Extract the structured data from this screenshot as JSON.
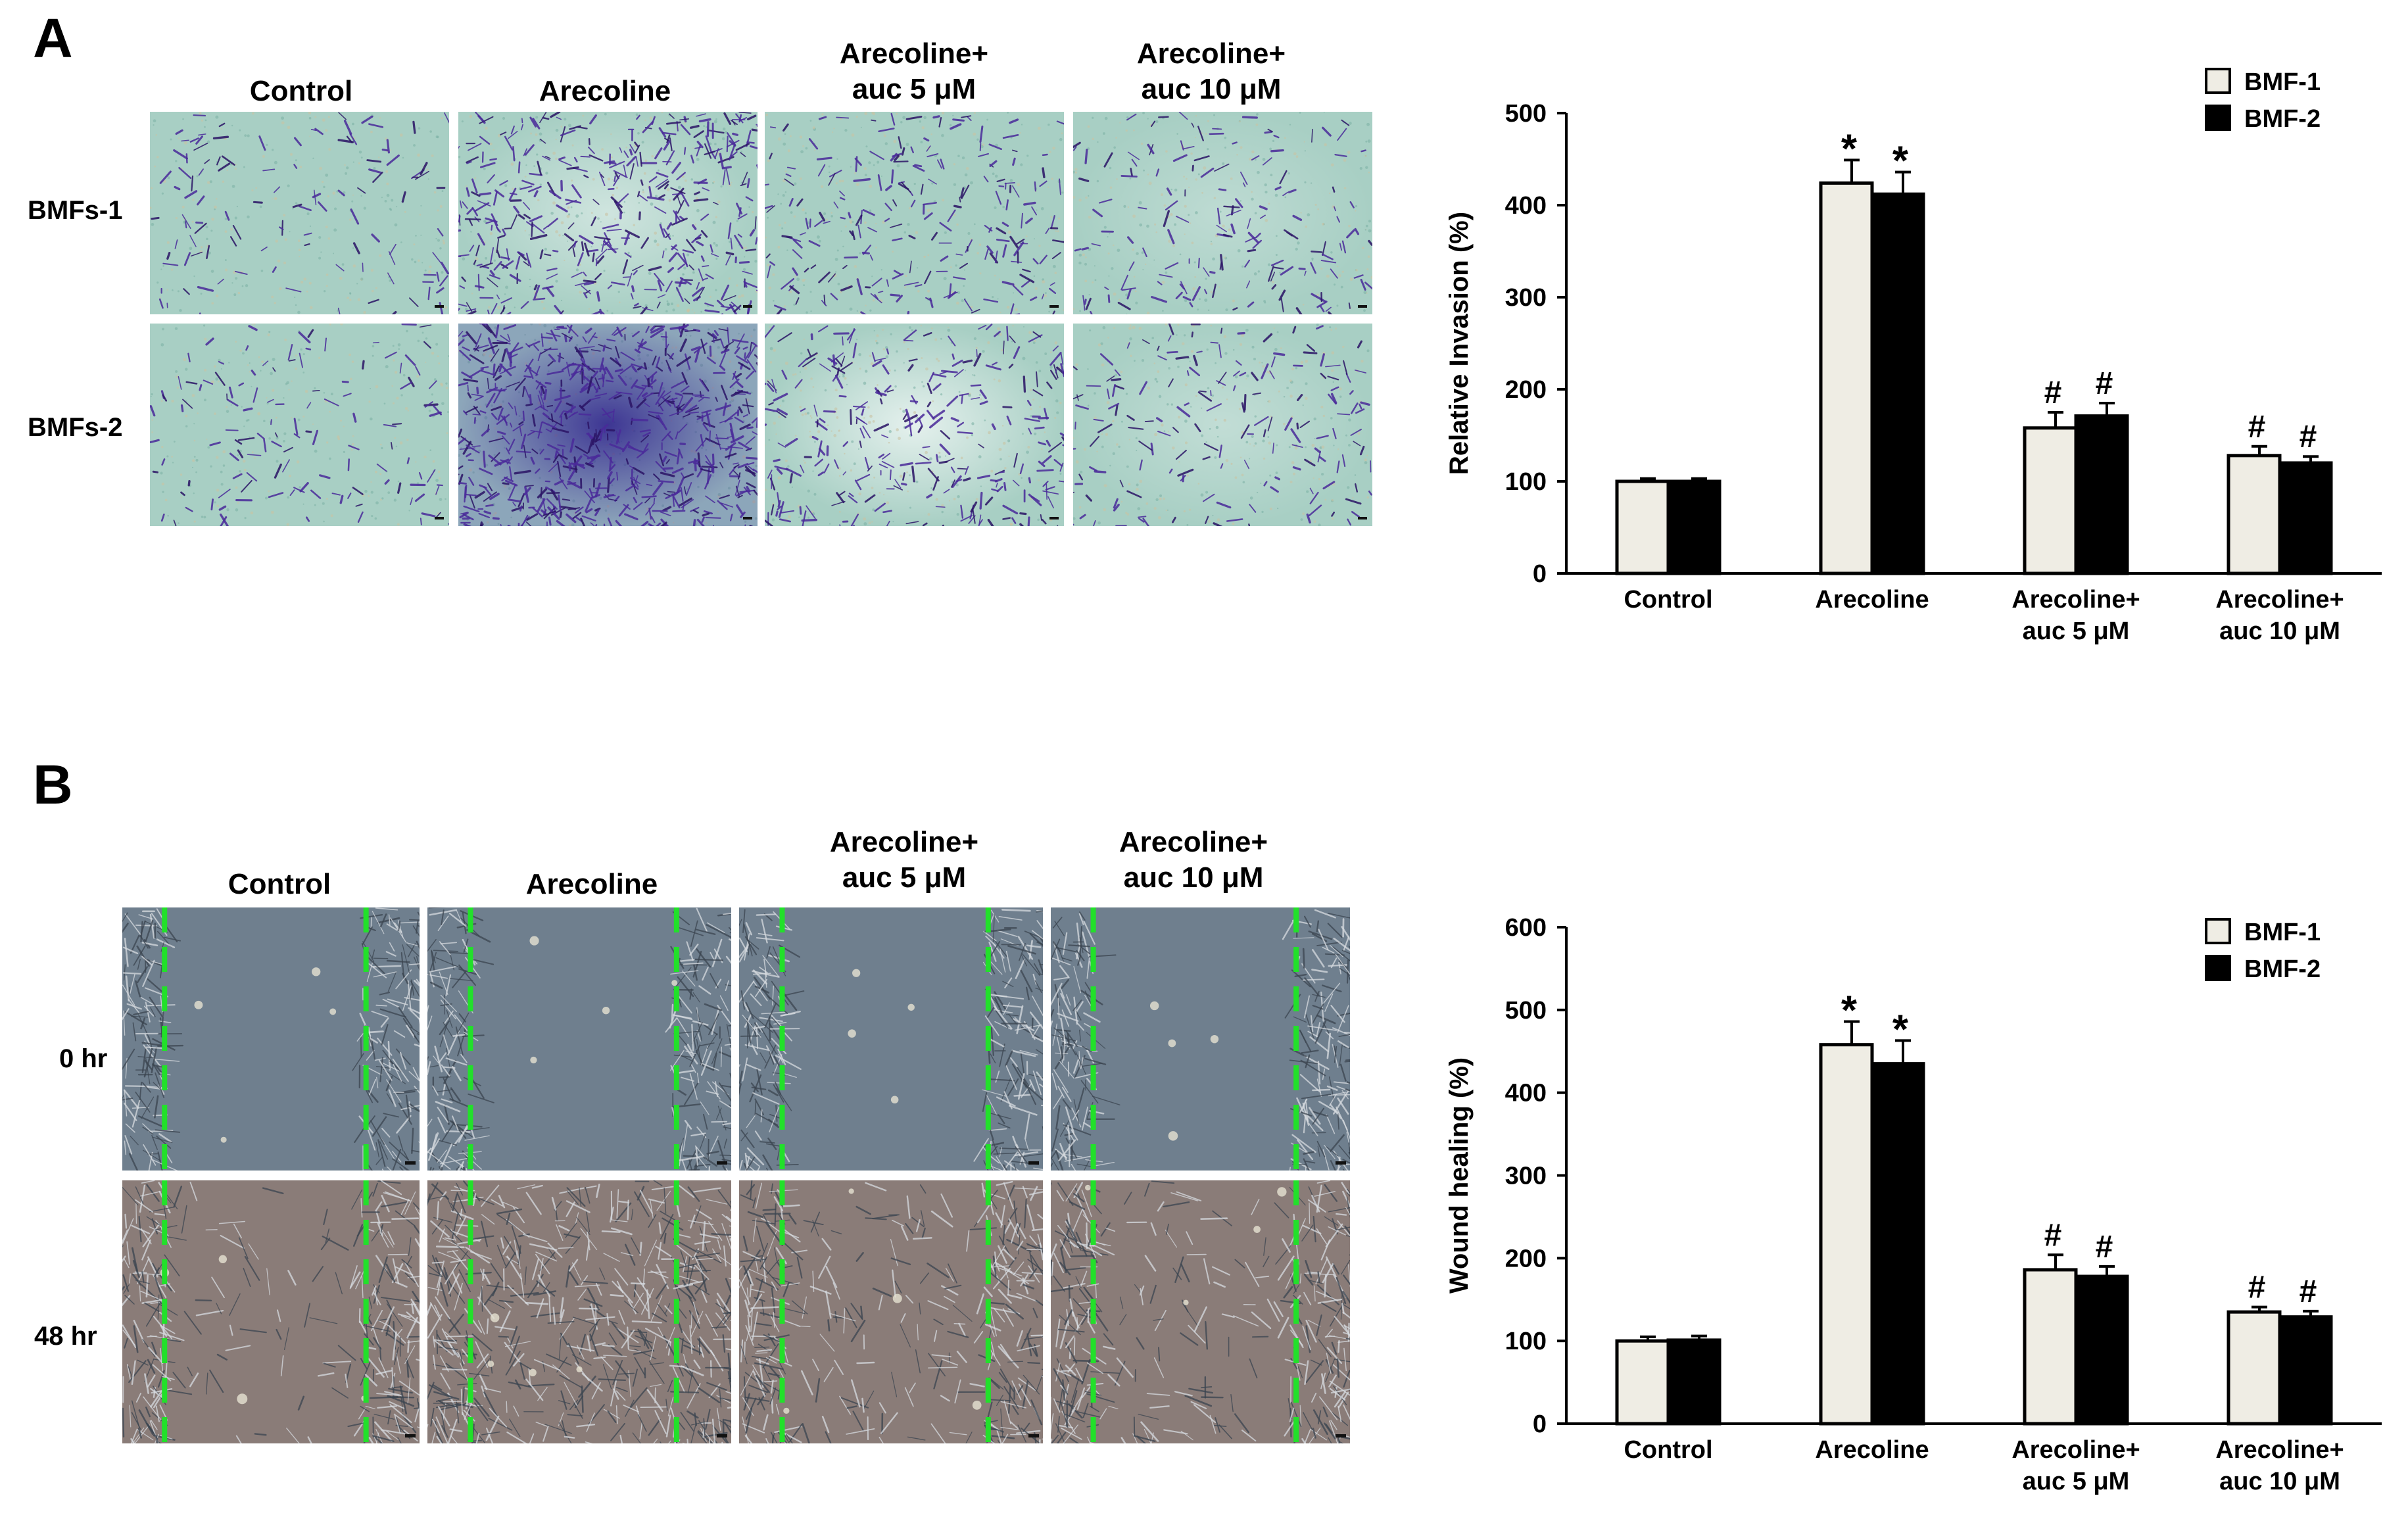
{
  "panel_A": {
    "letter": "A",
    "columns": [
      {
        "line1": "Control",
        "line2": ""
      },
      {
        "line1": "Arecoline",
        "line2": ""
      },
      {
        "line1": "Arecoline+",
        "line2": "auc 5 μM"
      },
      {
        "line1": "Arecoline+",
        "line2": "auc 10 μM"
      }
    ],
    "rows": [
      "BMFs-1",
      "BMFs-2"
    ]
  },
  "panel_B": {
    "letter": "B",
    "columns": [
      {
        "line1": "Control",
        "line2": ""
      },
      {
        "line1": "Arecoline",
        "line2": ""
      },
      {
        "line1": "Arecoline+",
        "line2": "auc 5 μM"
      },
      {
        "line1": "Arecoline+",
        "line2": "auc 10 μM"
      }
    ],
    "rows": [
      "0 hr",
      "48 hr"
    ]
  },
  "colors": {
    "bmf1_fill": "#efede4",
    "bmf2_fill": "#000000",
    "invasion_bg": "#a8cfc4",
    "invasion_stain": "#4a2a9a",
    "wound_bg": "#6f7f8e",
    "wound_bg_48": "#8a7c78",
    "wound_line": "#22e02a"
  },
  "chart_data": [
    {
      "type": "bar",
      "panel": "A",
      "title": "",
      "xlabel": "",
      "ylabel": "Relative  Invasion  (%)",
      "ylim": [
        0,
        500
      ],
      "yticks": [
        0,
        100,
        200,
        300,
        400,
        500
      ],
      "categories": [
        {
          "line1": "Control",
          "line2": ""
        },
        {
          "line1": "Arecoline",
          "line2": ""
        },
        {
          "line1": "Arecoline+",
          "line2": "auc 5 μM"
        },
        {
          "line1": "Arecoline+",
          "line2": "auc 10 μM"
        }
      ],
      "series": [
        {
          "name": "BMF-1",
          "values": [
            100,
            424,
            158,
            128
          ],
          "errors": [
            3,
            25,
            17,
            10
          ]
        },
        {
          "name": "BMF-2",
          "values": [
            100,
            412,
            171,
            120
          ],
          "errors": [
            3,
            24,
            14,
            7
          ]
        }
      ],
      "annotations": [
        [
          "",
          ""
        ],
        [
          "*",
          "*"
        ],
        [
          "#",
          "#"
        ],
        [
          "#",
          "#"
        ]
      ],
      "legend_position": "top-right"
    },
    {
      "type": "bar",
      "panel": "B",
      "title": "",
      "xlabel": "",
      "ylabel": "Wound healing (%)",
      "ylim": [
        0,
        600
      ],
      "yticks": [
        0,
        100,
        200,
        300,
        400,
        500,
        600
      ],
      "categories": [
        {
          "line1": "Control",
          "line2": ""
        },
        {
          "line1": "Arecoline",
          "line2": ""
        },
        {
          "line1": "Arecoline+",
          "line2": "auc 5 μM"
        },
        {
          "line1": "Arecoline+",
          "line2": "auc 10 μM"
        }
      ],
      "series": [
        {
          "name": "BMF-1",
          "values": [
            100,
            458,
            186,
            135
          ],
          "errors": [
            5,
            28,
            18,
            6
          ]
        },
        {
          "name": "BMF-2",
          "values": [
            101,
            435,
            178,
            129
          ],
          "errors": [
            5,
            28,
            12,
            7
          ]
        }
      ],
      "annotations": [
        [
          "",
          ""
        ],
        [
          "*",
          "*"
        ],
        [
          "#",
          "#"
        ],
        [
          "#",
          "#"
        ]
      ],
      "legend_position": "top-right"
    }
  ]
}
